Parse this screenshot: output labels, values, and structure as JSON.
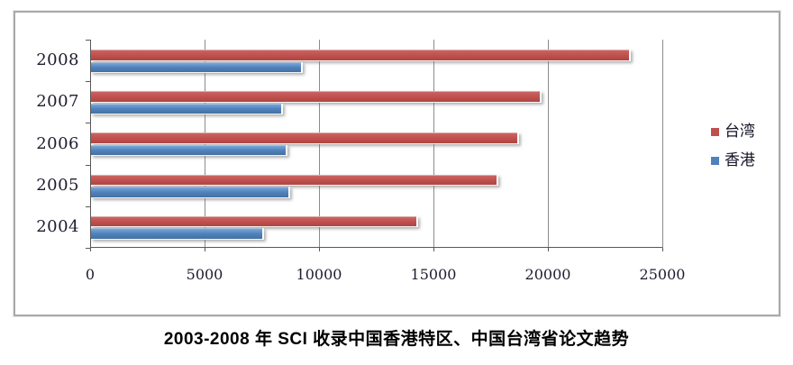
{
  "title": "2003-2008 年 SCI 收录中国香港特区、中国台湾省论文趋势",
  "chart_data": {
    "type": "bar",
    "orientation": "horizontal",
    "title": "2003-2008 年 SCI 收录中国香港特区、中国台湾省论文趋势",
    "categories": [
      "2008",
      "2007",
      "2006",
      "2005",
      "2004"
    ],
    "series": [
      {
        "name": "台湾",
        "color": "#C0504D",
        "values": [
          23600,
          19700,
          18700,
          17800,
          14300
        ]
      },
      {
        "name": "香港",
        "color": "#4F81BD",
        "values": [
          9250,
          8400,
          8600,
          8700,
          7550
        ]
      }
    ],
    "xlabel": "",
    "ylabel": "",
    "xlim": [
      0,
      25000
    ],
    "xticks": [
      "0",
      "5000",
      "10000",
      "15000",
      "20000",
      "25000"
    ],
    "xtick_values": [
      0,
      5000,
      10000,
      15000,
      20000,
      25000
    ],
    "grid": "vertical",
    "legend_position": "right",
    "legend_entries": [
      "台湾",
      "香港"
    ]
  },
  "colors": {
    "taiwan_bar": "#C0504D",
    "hongkong_bar": "#4F81BD",
    "gridline": "#8c8c8c",
    "axis": "#595959",
    "frame_border": "#a9a9a9",
    "label_text": "#1d1d30",
    "title_text": "#000000",
    "background": "#ffffff"
  }
}
